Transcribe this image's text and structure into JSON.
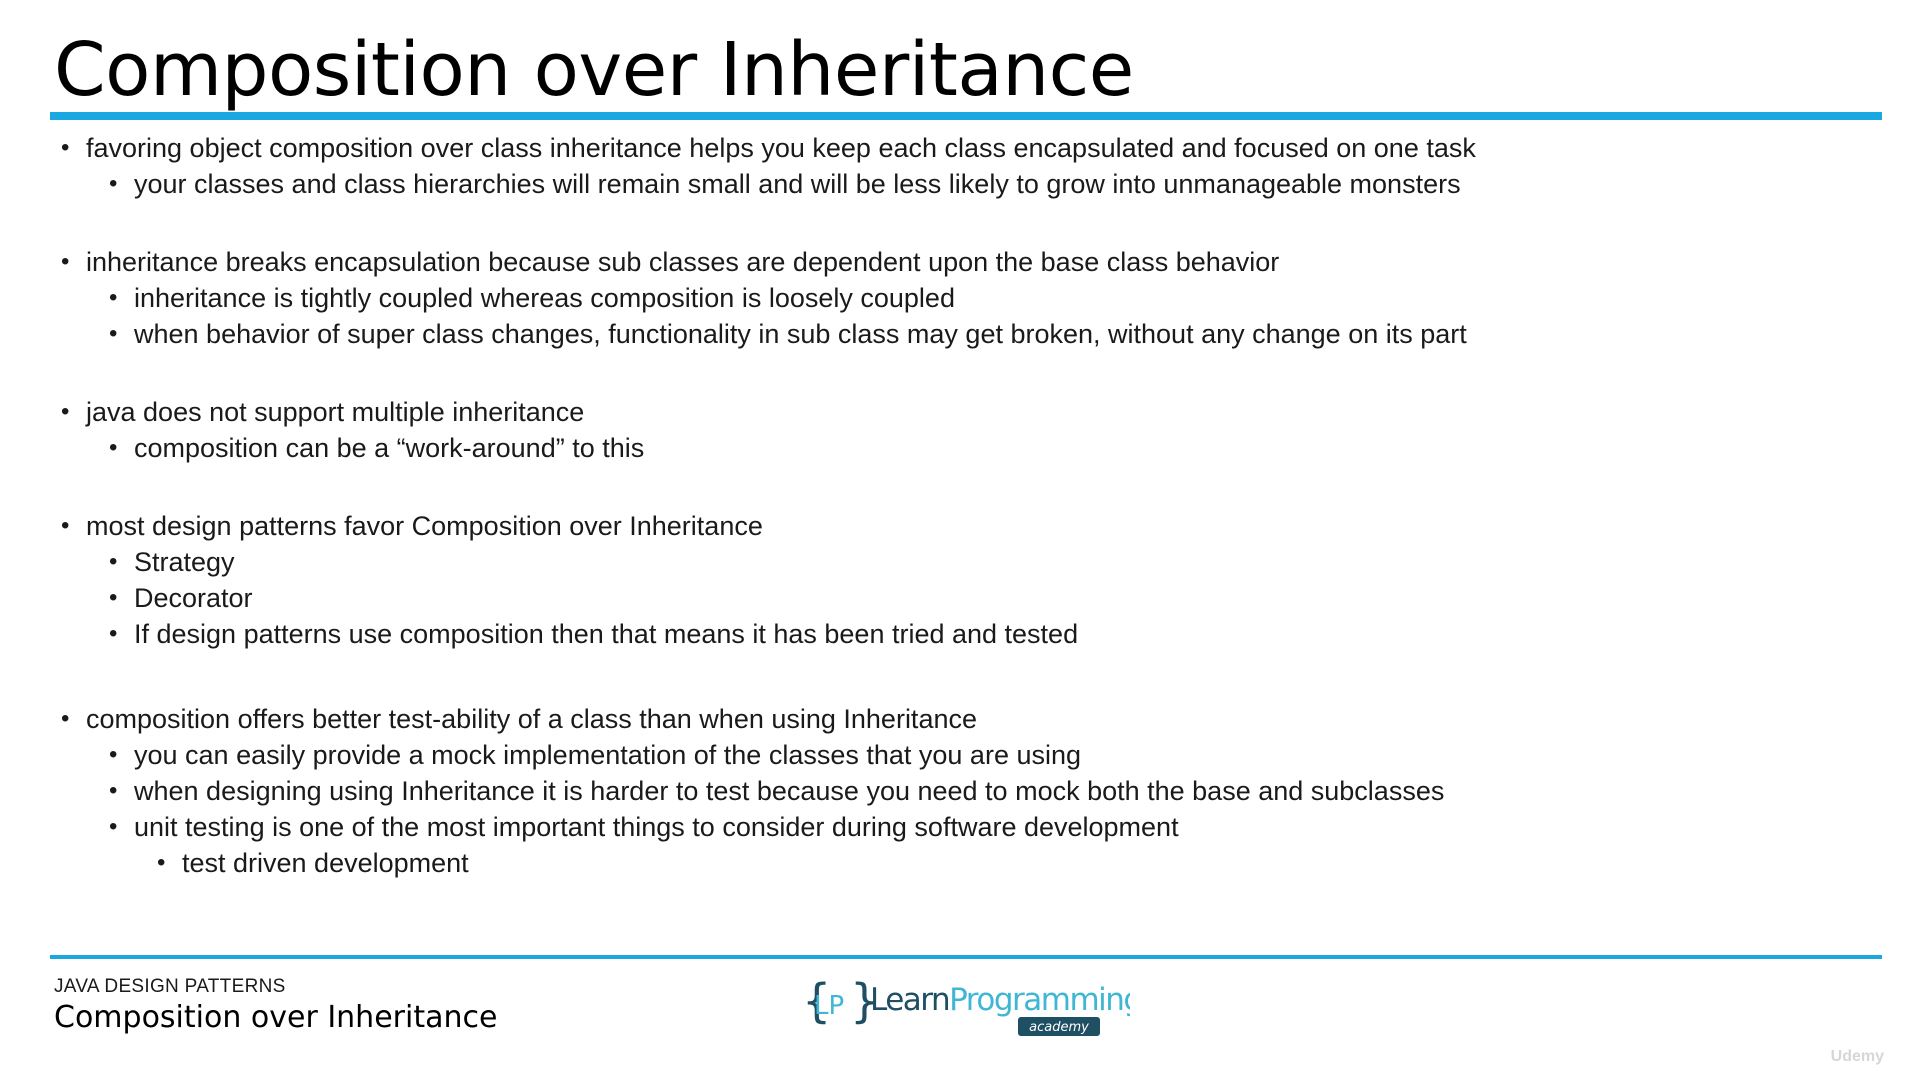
{
  "slide": {
    "title": "Composition over Inheritance"
  },
  "bullets": [
    {
      "text": "favoring object composition over class inheritance helps you keep each class encapsulated and focused on one task",
      "children": [
        {
          "text": "your classes and class hierarchies will remain small and will be less likely to grow into unmanageable monsters"
        }
      ]
    },
    {
      "text": "inheritance breaks encapsulation because sub classes are dependent upon the base class behavior",
      "children": [
        {
          "text": "inheritance is tightly coupled whereas composition is loosely coupled"
        },
        {
          "text": "when behavior of super class changes, functionality in sub class may get broken, without any change on its part"
        }
      ]
    },
    {
      "text": "java does not support multiple inheritance",
      "children": [
        {
          "text": "composition can be a “work-around” to this"
        }
      ]
    },
    {
      "text": "most design patterns favor Composition over Inheritance",
      "children": [
        {
          "text": "Strategy"
        },
        {
          "text": "Decorator"
        },
        {
          "text": "If design patterns use composition then that means it has been tried and tested"
        }
      ]
    },
    {
      "text": "composition offers better test-ability of a class than when using Inheritance",
      "children": [
        {
          "text": "you can easily provide a mock implementation of the classes that you are using"
        },
        {
          "text": "when designing using Inheritance it is harder to test because you need to mock both the base and subclasses"
        },
        {
          "text": "unit testing is one of the most important things to consider during software development",
          "children": [
            {
              "text": "test driven development"
            }
          ]
        }
      ]
    }
  ],
  "footer": {
    "course": "JAVA DESIGN PATTERNS",
    "lecture": "Composition over Inheritance",
    "logo": {
      "mark": "LP",
      "name_learn": "Learn",
      "name_programming": "Programming",
      "tag": "academy"
    },
    "watermark": "Udemy"
  },
  "colors": {
    "accent": "#19a8e0",
    "logo_dark": "#1f4f63",
    "logo_light": "#3fb6d3"
  }
}
